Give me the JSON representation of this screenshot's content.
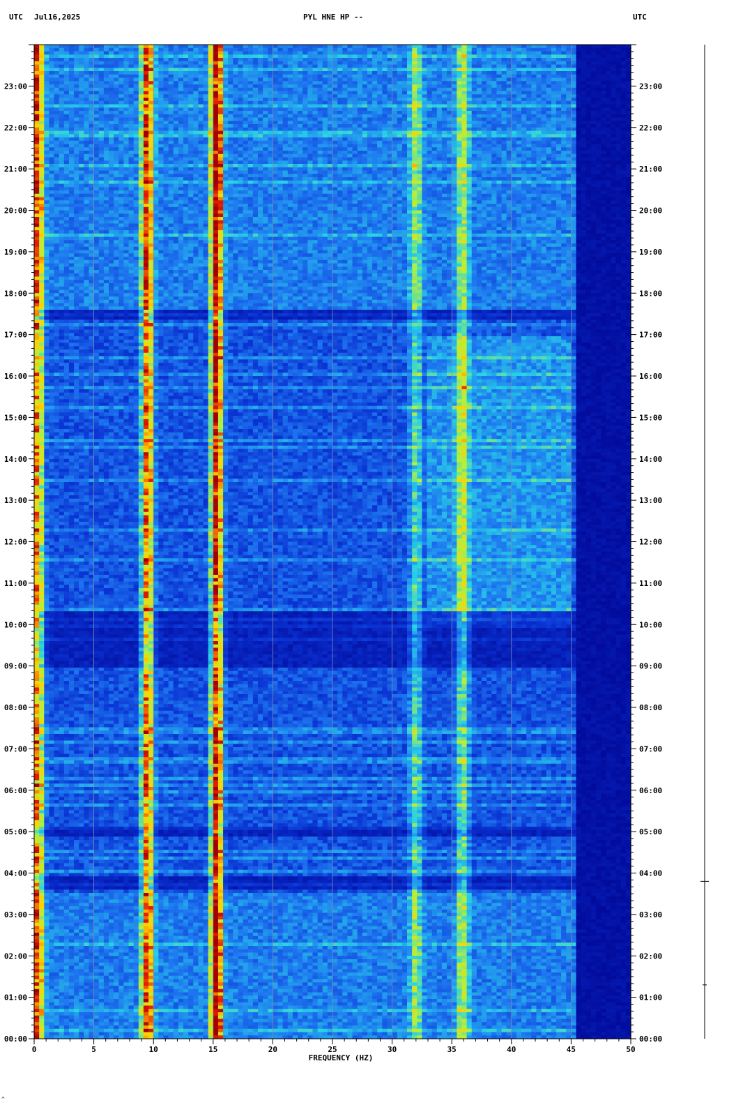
{
  "header": {
    "left_utc": "UTC",
    "date": "Jul16,2025",
    "station": "PYL HNE HP --",
    "right_utc": "UTC"
  },
  "corner_mark": "^",
  "chart_data": {
    "type": "heatmap",
    "title": "PYL HNE HP --",
    "xlabel": "FREQUENCY (HZ)",
    "ylabel": "",
    "xlim": [
      0,
      50
    ],
    "x_major_ticks": [
      0,
      5,
      10,
      15,
      20,
      25,
      30,
      35,
      40,
      45,
      50
    ],
    "y_range_hours": [
      0,
      24
    ],
    "y_tick_labels": [
      "00:00",
      "01:00",
      "02:00",
      "03:00",
      "04:00",
      "05:00",
      "06:00",
      "07:00",
      "08:00",
      "09:00",
      "10:00",
      "11:00",
      "12:00",
      "13:00",
      "14:00",
      "15:00",
      "16:00",
      "17:00",
      "18:00",
      "19:00",
      "20:00",
      "21:00",
      "22:00",
      "23:00"
    ],
    "colormap": [
      "#00008c",
      "#0a32d2",
      "#1e78f0",
      "#28d2e6",
      "#b4f03c",
      "#ffd200",
      "#e61e00",
      "#a00000"
    ],
    "grid_freqs_hz": [
      5,
      10,
      15,
      20,
      25,
      30,
      35,
      40,
      45
    ],
    "spectral_lines": [
      {
        "freq_hz": 0.3,
        "strength": 0.75
      },
      {
        "freq_hz": 9.5,
        "strength": 0.8
      },
      {
        "freq_hz": 15.3,
        "strength": 0.95
      },
      {
        "freq_hz": 32.0,
        "strength": 0.35
      },
      {
        "freq_hz": 35.9,
        "strength": 0.4
      }
    ],
    "energy_cutoff_hz": 45.5,
    "quiet_periods_hours": [
      [
        9.0,
        10.3
      ],
      [
        17.4,
        17.6
      ],
      [
        3.6,
        3.9
      ],
      [
        4.9,
        5.1
      ]
    ],
    "high_energy_periods_hours": [
      [
        0.0,
        3.5
      ],
      [
        17.6,
        24.0
      ]
    ],
    "scale_bar": {
      "ticks_hours": [
        1.3,
        3.8
      ]
    }
  }
}
